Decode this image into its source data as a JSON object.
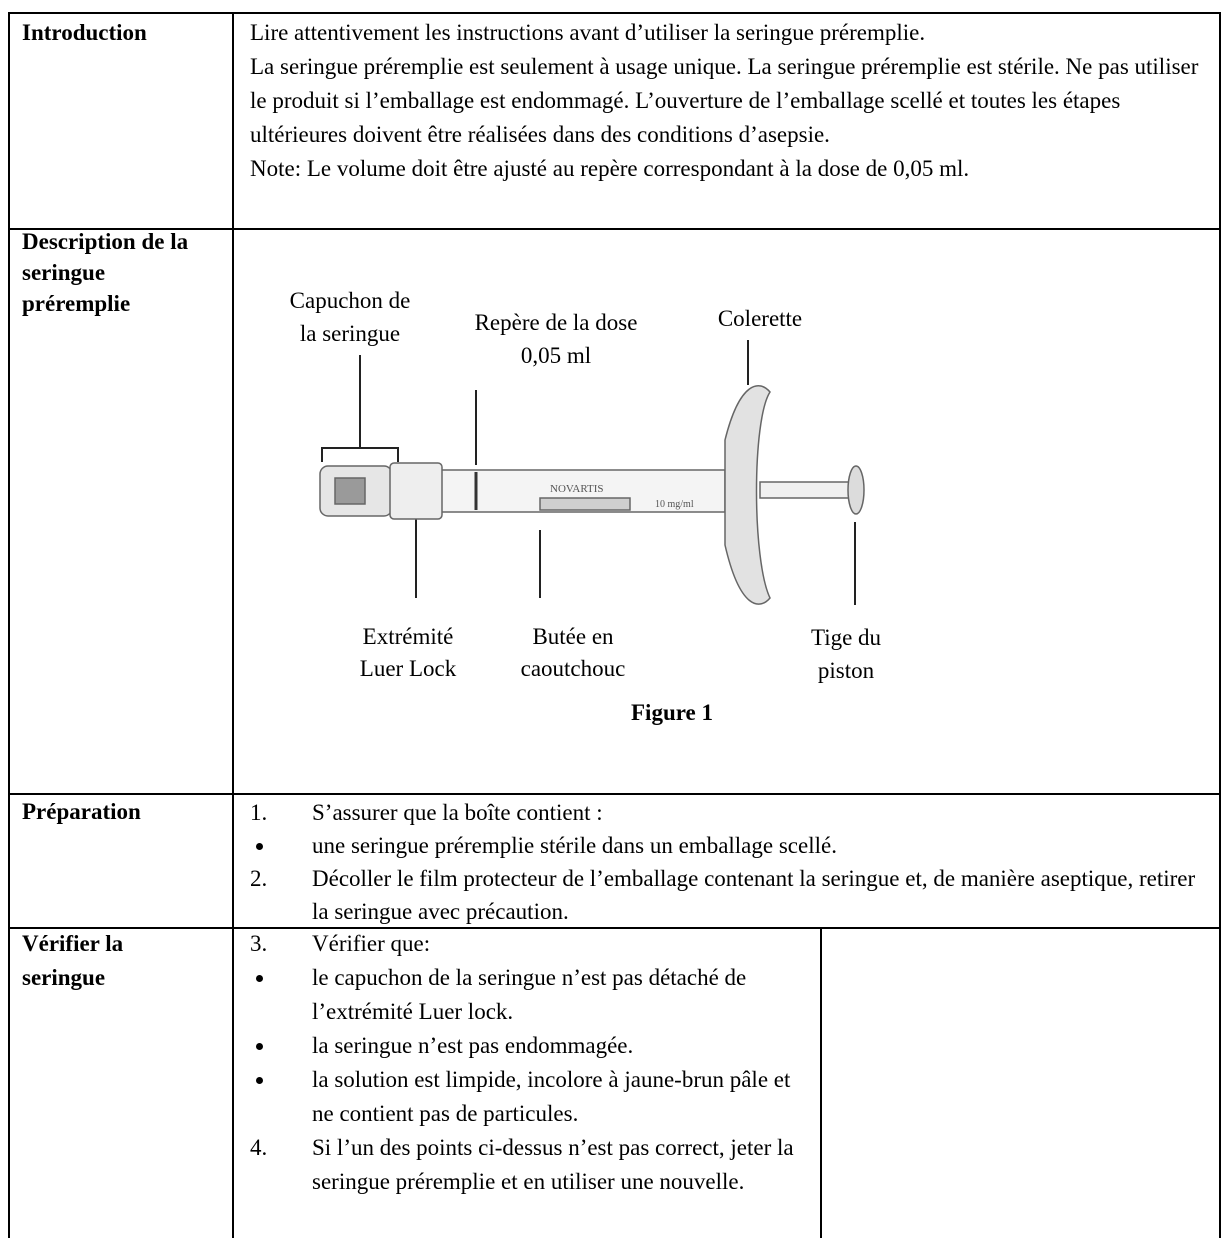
{
  "table": {
    "rows": [
      {
        "header": "Introduction",
        "paragraphs": [
          "Lire attentivement les instructions avant d’utiliser la seringue préremplie.",
          "La seringue préremplie est seulement à usage unique. La seringue préremplie est stérile. Ne pas utiliser le produit si l’emballage est endommagé. L’ouverture de l’emballage scellé et toutes les étapes ultérieures doivent être réalisées dans des conditions d’asepsie.",
          "Note: Le volume doit être ajusté au repère correspondant à la dose de 0,05 ml."
        ]
      },
      {
        "header": "Description de la seringue préremplie",
        "figure": {
          "labels": [
            {
              "lines": [
                "Capuchon de",
                "la seringue"
              ]
            },
            {
              "lines": [
                "Repère de la dose",
                "0,05 ml"
              ]
            },
            {
              "lines": [
                "Colerette"
              ]
            },
            {
              "lines": [
                "Extrémité",
                "Luer Lock"
              ]
            },
            {
              "lines": [
                "Butée en",
                "caoutchouc"
              ]
            },
            {
              "lines": [
                "Tige du",
                "piston"
              ]
            }
          ],
          "syringe_print": [
            "NOVARTIS",
            "10 mg/ml"
          ],
          "caption": "Figure 1"
        }
      },
      {
        "header": "Préparation",
        "items": [
          {
            "marker": "1.",
            "text": "S’assurer que la boîte contient :"
          },
          {
            "text": "une seringue préremplie stérile dans un emballage scellé."
          },
          {
            "marker": "2.",
            "text": "Décoller le film protecteur de l’emballage contenant la seringue et, de manière aseptique, retirer la seringue avec précaution."
          }
        ]
      },
      {
        "header": "Vérifier la seringue",
        "items": [
          {
            "marker": "3.",
            "text": "Vérifier que:"
          },
          {
            "text": "le capuchon de la seringue n’est pas détaché de l’extrémité Luer lock."
          },
          {
            "text": "la seringue n’est pas endommagée."
          },
          {
            "text": "la solution est limpide, incolore à jaune-brun pâle et ne contient pas de particules."
          },
          {
            "marker": "4.",
            "text": "Si l’un des points ci-dessus n’est pas correct, jeter la seringue préremplie et en utiliser une nouvelle."
          }
        ]
      }
    ]
  }
}
